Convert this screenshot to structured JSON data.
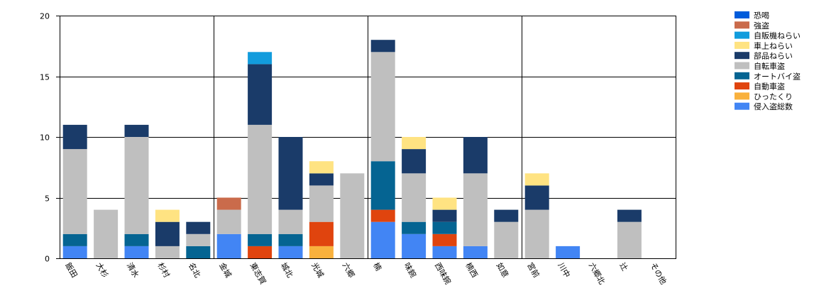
{
  "chart_data": {
    "type": "bar",
    "stacked": true,
    "title": "",
    "xlabel": "",
    "ylabel": "",
    "ylim": [
      0,
      20
    ],
    "yticks": [
      0,
      5,
      10,
      15,
      20
    ],
    "grid": true,
    "legend_position": "top-right",
    "categories": [
      "飯田",
      "大杉",
      "清水",
      "杉村",
      "名北",
      "金城",
      "東志賀",
      "城北",
      "光城",
      "六郷",
      "楠",
      "味鋺",
      "西味鋺",
      "楠西",
      "如意",
      "宮前",
      "川中",
      "六郷北",
      "辻",
      "その他"
    ],
    "series": [
      {
        "name": "侵入盗総数",
        "color": "#4285f4",
        "values": [
          1,
          0,
          1,
          0,
          0,
          2,
          0,
          1,
          0,
          0,
          3,
          2,
          1,
          1,
          0,
          0,
          1,
          0,
          0,
          0
        ]
      },
      {
        "name": "ひったくり",
        "color": "#f9b13d",
        "values": [
          0,
          0,
          0,
          0,
          0,
          0,
          0,
          0,
          1,
          0,
          0,
          0,
          0,
          0,
          0,
          0,
          0,
          0,
          0,
          0
        ]
      },
      {
        "name": "自動車盗",
        "color": "#e0440e",
        "values": [
          0,
          0,
          0,
          0,
          0,
          0,
          1,
          0,
          2,
          0,
          1,
          0,
          1,
          0,
          0,
          0,
          0,
          0,
          0,
          0
        ]
      },
      {
        "name": "オートバイ盗",
        "color": "#056492",
        "values": [
          1,
          0,
          1,
          0,
          1,
          0,
          1,
          1,
          0,
          0,
          4,
          1,
          1,
          0,
          0,
          0,
          0,
          0,
          0,
          0
        ]
      },
      {
        "name": "自転車盗",
        "color": "#bfbfbf",
        "values": [
          7,
          4,
          8,
          1,
          1,
          2,
          9,
          2,
          3,
          7,
          9,
          4,
          0,
          6,
          3,
          4,
          0,
          0,
          3,
          0
        ]
      },
      {
        "name": "部品ねらい",
        "color": "#1a3b69",
        "values": [
          2,
          0,
          1,
          2,
          1,
          0,
          5,
          6,
          1,
          0,
          1,
          2,
          1,
          3,
          1,
          2,
          0,
          0,
          1,
          0
        ]
      },
      {
        "name": "車上ねらい",
        "color": "#ffe382",
        "values": [
          0,
          0,
          0,
          1,
          0,
          0,
          0,
          0,
          1,
          0,
          0,
          1,
          1,
          0,
          0,
          1,
          0,
          0,
          0,
          0
        ]
      },
      {
        "name": "自販機ねらい",
        "color": "#129cdd",
        "values": [
          0,
          0,
          0,
          0,
          0,
          0,
          1,
          0,
          0,
          0,
          0,
          0,
          0,
          0,
          0,
          0,
          0,
          0,
          0,
          0
        ]
      },
      {
        "name": "強盗",
        "color": "#ca6b4b",
        "values": [
          0,
          0,
          0,
          0,
          0,
          1,
          0,
          0,
          0,
          0,
          0,
          0,
          0,
          0,
          0,
          0,
          0,
          0,
          0,
          0
        ]
      },
      {
        "name": "恐喝",
        "color": "#005cdb",
        "values": [
          0,
          0,
          0,
          0,
          0,
          0,
          0,
          0,
          0,
          0,
          0,
          0,
          0,
          0,
          0,
          0,
          0,
          0,
          0,
          0
        ]
      }
    ]
  }
}
